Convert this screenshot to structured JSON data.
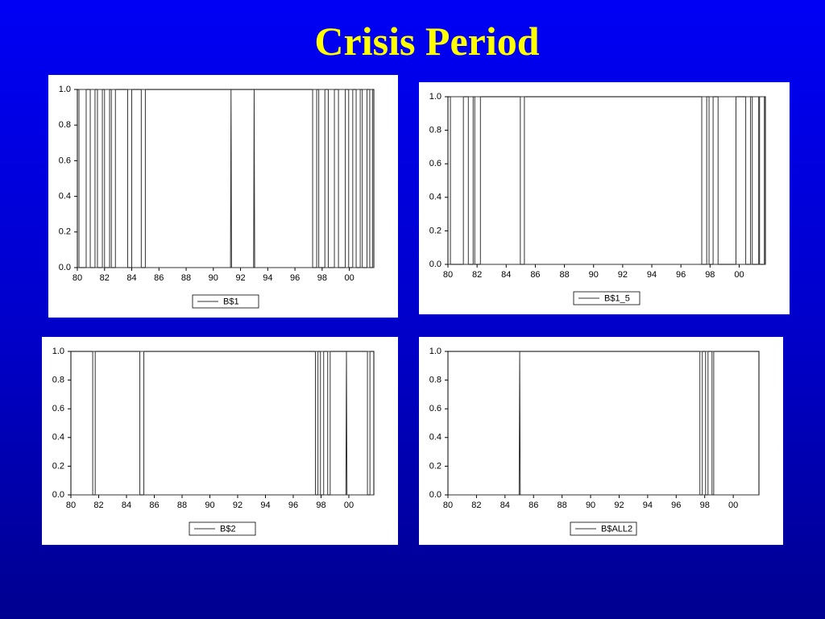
{
  "title": "Crisis Period",
  "chart_data": [
    {
      "type": "line",
      "legend": "bottom",
      "grid": false,
      "xlim": [
        1980,
        2001.8
      ],
      "ylim": [
        0,
        1
      ],
      "xticks": [
        {
          "value": 1980,
          "label": "80"
        },
        {
          "value": 1982,
          "label": "82"
        },
        {
          "value": 1984,
          "label": "84"
        },
        {
          "value": 1986,
          "label": "86"
        },
        {
          "value": 1988,
          "label": "88"
        },
        {
          "value": 1990,
          "label": "90"
        },
        {
          "value": 1992,
          "label": "92"
        },
        {
          "value": 1994,
          "label": "94"
        },
        {
          "value": 1996,
          "label": "96"
        },
        {
          "value": 1998,
          "label": "98"
        },
        {
          "value": 2000,
          "label": "00"
        }
      ],
      "yticks": [
        {
          "value": 0,
          "label": "0.0"
        },
        {
          "value": 0.2,
          "label": "0.2"
        },
        {
          "value": 0.4,
          "label": "0.4"
        },
        {
          "value": 0.6,
          "label": "0.6"
        },
        {
          "value": 0.8,
          "label": "0.8"
        },
        {
          "value": 1,
          "label": "1.0"
        }
      ],
      "x": [
        1980,
        1980.12,
        1980.12,
        1980.65,
        1980.65,
        1980.95,
        1980.95,
        1981.3,
        1981.3,
        1981.48,
        1981.48,
        1981.84,
        1981.84,
        1982.0,
        1982.0,
        1982.37,
        1982.37,
        1982.5,
        1982.5,
        1982.8,
        1982.8,
        1983.7,
        1983.7,
        1984.0,
        1984.0,
        1984.7,
        1984.7,
        1985.0,
        1985.0,
        1991.26,
        1991.3,
        1991.34,
        1992.96,
        1993.0,
        1993.04,
        1997.3,
        1997.3,
        1997.6,
        1997.6,
        1997.75,
        1997.75,
        1998.2,
        1998.2,
        1998.45,
        1998.45,
        1998.9,
        1998.9,
        1999.2,
        1999.2,
        1999.7,
        1999.7,
        1999.95,
        1999.95,
        2000.25,
        2000.25,
        2000.5,
        2000.5,
        2000.8,
        2000.8,
        2000.95,
        2000.95,
        2001.3,
        2001.3,
        2001.5,
        2001.5,
        2001.7,
        2001.7,
        2001.8
      ],
      "series": [
        {
          "name": "B$1",
          "color": "#333333",
          "values": [
            0,
            0,
            1,
            1,
            0,
            0,
            1,
            1,
            0,
            0,
            1,
            1,
            0,
            0,
            1,
            1,
            0,
            0,
            1,
            1,
            0,
            0,
            1,
            1,
            0,
            0,
            1,
            1,
            0,
            0,
            1,
            0,
            0,
            1,
            0,
            0,
            1,
            1,
            0,
            0,
            1,
            1,
            0,
            0,
            1,
            1,
            0,
            0,
            1,
            1,
            0,
            0,
            1,
            1,
            0,
            0,
            1,
            1,
            0,
            0,
            1,
            1,
            0,
            0,
            1,
            1,
            0,
            0
          ]
        }
      ]
    },
    {
      "type": "line",
      "legend": "bottom",
      "grid": false,
      "xlim": [
        1980,
        2001.8
      ],
      "ylim": [
        0,
        1
      ],
      "xticks": [
        {
          "value": 1980,
          "label": "80"
        },
        {
          "value": 1982,
          "label": "82"
        },
        {
          "value": 1984,
          "label": "84"
        },
        {
          "value": 1986,
          "label": "86"
        },
        {
          "value": 1988,
          "label": "88"
        },
        {
          "value": 1990,
          "label": "90"
        },
        {
          "value": 1992,
          "label": "92"
        },
        {
          "value": 1994,
          "label": "94"
        },
        {
          "value": 1996,
          "label": "96"
        },
        {
          "value": 1998,
          "label": "98"
        },
        {
          "value": 2000,
          "label": "00"
        }
      ],
      "yticks": [
        {
          "value": 0,
          "label": "0.0"
        },
        {
          "value": 0.2,
          "label": "0.2"
        },
        {
          "value": 0.4,
          "label": "0.4"
        },
        {
          "value": 0.6,
          "label": "0.6"
        },
        {
          "value": 0.8,
          "label": "0.8"
        },
        {
          "value": 1,
          "label": "1.0"
        }
      ],
      "x": [
        1980,
        1980.17,
        1980.17,
        1981.06,
        1981.06,
        1981.4,
        1981.4,
        1981.73,
        1981.73,
        1981.84,
        1981.84,
        1982.23,
        1982.23,
        1984.97,
        1984.97,
        1985.25,
        1985.25,
        1997.43,
        1997.43,
        1997.77,
        1997.77,
        1997.93,
        1997.93,
        1998.21,
        1998.21,
        1998.55,
        1998.55,
        1999.78,
        1999.78,
        2000.45,
        2000.45,
        2000.78,
        2000.78,
        2000.9,
        2000.9,
        2001.34,
        2001.34,
        2001.4,
        2001.4,
        2001.73,
        2001.73,
        2001.8
      ],
      "series": [
        {
          "name": "B$1_5",
          "color": "#333333",
          "values": [
            0,
            0,
            1,
            1,
            0,
            0,
            1,
            1,
            0,
            0,
            1,
            1,
            0,
            0,
            1,
            1,
            0,
            0,
            1,
            1,
            0,
            0,
            1,
            1,
            0,
            0,
            1,
            1,
            0,
            0,
            1,
            1,
            0,
            0,
            1,
            1,
            0,
            0,
            1,
            1,
            0,
            0
          ]
        }
      ]
    },
    {
      "type": "line",
      "legend": "bottom",
      "grid": false,
      "xlim": [
        1980,
        2001.8
      ],
      "ylim": [
        0,
        1
      ],
      "xticks": [
        {
          "value": 1980,
          "label": "80"
        },
        {
          "value": 1982,
          "label": "82"
        },
        {
          "value": 1984,
          "label": "84"
        },
        {
          "value": 1986,
          "label": "86"
        },
        {
          "value": 1988,
          "label": "88"
        },
        {
          "value": 1990,
          "label": "90"
        },
        {
          "value": 1992,
          "label": "92"
        },
        {
          "value": 1994,
          "label": "94"
        },
        {
          "value": 1996,
          "label": "96"
        },
        {
          "value": 1998,
          "label": "98"
        },
        {
          "value": 2000,
          "label": "00"
        }
      ],
      "yticks": [
        {
          "value": 0,
          "label": "0.0"
        },
        {
          "value": 0.2,
          "label": "0.2"
        },
        {
          "value": 0.4,
          "label": "0.4"
        },
        {
          "value": 0.6,
          "label": "0.6"
        },
        {
          "value": 0.8,
          "label": "0.8"
        },
        {
          "value": 1,
          "label": "1.0"
        }
      ],
      "x": [
        1980,
        1981.57,
        1981.57,
        1981.75,
        1981.75,
        1984.96,
        1984.96,
        1985.25,
        1985.25,
        1997.6,
        1997.6,
        1997.78,
        1997.78,
        1997.96,
        1997.96,
        1998.19,
        1998.19,
        1998.48,
        1998.48,
        1998.66,
        1998.66,
        1999.79,
        1999.83,
        1999.87,
        2001.34,
        2001.34,
        2001.52,
        2001.52,
        2001.8
      ],
      "series": [
        {
          "name": "B$2",
          "color": "#333333",
          "values": [
            0,
            0,
            1,
            1,
            0,
            0,
            1,
            1,
            0,
            0,
            1,
            1,
            0,
            0,
            1,
            1,
            0,
            0,
            1,
            1,
            0,
            0,
            1,
            0,
            0,
            1,
            1,
            0,
            0
          ]
        }
      ]
    },
    {
      "type": "line",
      "legend": "bottom",
      "grid": false,
      "xlim": [
        1980,
        2001.8
      ],
      "ylim": [
        0,
        1
      ],
      "xticks": [
        {
          "value": 1980,
          "label": "80"
        },
        {
          "value": 1982,
          "label": "82"
        },
        {
          "value": 1984,
          "label": "84"
        },
        {
          "value": 1986,
          "label": "86"
        },
        {
          "value": 1988,
          "label": "88"
        },
        {
          "value": 1990,
          "label": "90"
        },
        {
          "value": 1992,
          "label": "92"
        },
        {
          "value": 1994,
          "label": "94"
        },
        {
          "value": 1996,
          "label": "96"
        },
        {
          "value": 1998,
          "label": "98"
        },
        {
          "value": 2000,
          "label": "00"
        }
      ],
      "yticks": [
        {
          "value": 0,
          "label": "0.0"
        },
        {
          "value": 0.2,
          "label": "0.2"
        },
        {
          "value": 0.4,
          "label": "0.4"
        },
        {
          "value": 0.6,
          "label": "0.6"
        },
        {
          "value": 0.8,
          "label": "0.8"
        },
        {
          "value": 1,
          "label": "1.0"
        }
      ],
      "x": [
        1980,
        1984.99,
        1985.03,
        1985.07,
        1997.66,
        1997.66,
        1997.83,
        1997.83,
        1998.06,
        1998.06,
        1998.23,
        1998.23,
        1998.51,
        1998.51,
        1998.63,
        1998.63,
        2001.8
      ],
      "series": [
        {
          "name": "B$ALL2",
          "color": "#333333",
          "values": [
            0,
            0,
            1,
            0,
            0,
            1,
            1,
            0,
            0,
            1,
            1,
            0,
            0,
            1,
            1,
            0,
            0
          ]
        }
      ]
    }
  ]
}
